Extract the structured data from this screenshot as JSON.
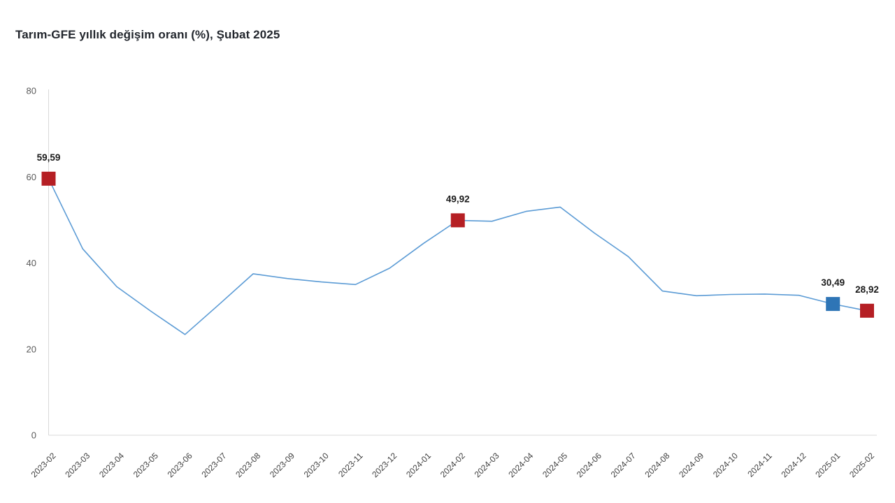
{
  "title": "Tarım-GFE yıllık değişim oranı (%), Şubat 2025",
  "chart_data": {
    "type": "line",
    "title": "Tarım-GFE yıllık değişim oranı (%), Şubat 2025",
    "x": [
      "2023-02",
      "2023-03",
      "2023-04",
      "2023-05",
      "2023-06",
      "2023-07",
      "2023-08",
      "2023-09",
      "2023-10",
      "2023-11",
      "2023-12",
      "2024-01",
      "2024-02",
      "2024-03",
      "2024-04",
      "2024-05",
      "2024-06",
      "2024-07",
      "2024-08",
      "2024-09",
      "2024-10",
      "2024-11",
      "2024-12",
      "2025-01",
      "2025-02"
    ],
    "series": [
      {
        "name": "Tarım-GFE yıllık değişim oranı (%)",
        "values": [
          59.59,
          43.3,
          34.5,
          28.8,
          23.4,
          30.4,
          37.5,
          36.4,
          35.6,
          35.0,
          38.8,
          44.6,
          49.92,
          49.7,
          52.0,
          53.0,
          47.0,
          41.5,
          33.5,
          32.4,
          32.7,
          32.8,
          32.5,
          30.49,
          28.92
        ]
      }
    ],
    "xlabel": "",
    "ylabel": "",
    "ylim": [
      0,
      80
    ],
    "yticks": [
      "0",
      "20",
      "40",
      "60",
      "80"
    ],
    "grid": false,
    "legend": "none",
    "highlight_markers": [
      {
        "x": "2023-02",
        "value": 59.59,
        "label": "59,59",
        "color": "#B51F24",
        "shape": "square"
      },
      {
        "x": "2024-02",
        "value": 49.92,
        "label": "49,92",
        "color": "#B51F24",
        "shape": "square"
      },
      {
        "x": "2025-01",
        "value": 30.49,
        "label": "30,49",
        "color": "#2E75B6",
        "shape": "square"
      },
      {
        "x": "2025-02",
        "value": 28.92,
        "label": "28,92",
        "color": "#B51F24",
        "shape": "square"
      }
    ],
    "colors": {
      "line": "#5B9BD5",
      "axis": "#D9D9D9",
      "ytick_text": "#595959",
      "xtick_text": "#404040",
      "data_label_text": "#1A1A1A",
      "title_text": "#23272E",
      "background": "#FFFFFF"
    }
  }
}
